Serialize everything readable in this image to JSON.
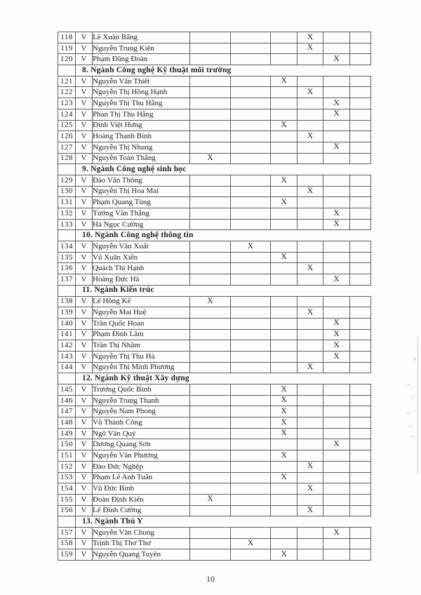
{
  "page": {
    "number": "10"
  },
  "colors": {
    "background": "#fdfdfb",
    "border": "#5d5d5d",
    "text": "#1f1f1f"
  },
  "table": {
    "check_symbol": "V",
    "mark_symbol": "X",
    "mark_columns": 6,
    "rows": [
      {
        "type": "entry",
        "no": "118",
        "check": "V",
        "name": "Lê Xuân Bằng",
        "mark_col": 4
      },
      {
        "type": "entry",
        "no": "119",
        "check": "V",
        "name": "Nguyễn Trung Kiên",
        "mark_col": 4
      },
      {
        "type": "entry",
        "no": "120",
        "check": "V",
        "name": "Phạm Đăng Đoàn",
        "mark_col": 5
      },
      {
        "type": "section",
        "label": "8. Ngành Công nghệ  Kỹ thuật môi trường"
      },
      {
        "type": "entry",
        "no": "121",
        "check": "V",
        "name": "Nguyễn Văn Thiết",
        "mark_col": 3
      },
      {
        "type": "entry",
        "no": "122",
        "check": "V",
        "name": "Nguyễn Thị Hồng Hạnh",
        "mark_col": 4
      },
      {
        "type": "entry",
        "no": "123",
        "check": "V",
        "name": "Nguyễn Thị Thu Hằng",
        "mark_col": 5
      },
      {
        "type": "entry",
        "no": "124",
        "check": "V",
        "name": "Phan Thị Thu Hằng",
        "mark_col": 5
      },
      {
        "type": "entry",
        "no": "125",
        "check": "V",
        "name": "Đinh Việt Hưng",
        "mark_col": 3
      },
      {
        "type": "entry",
        "no": "126",
        "check": "V",
        "name": "Hoàng Thanh Bình",
        "mark_col": 4
      },
      {
        "type": "entry",
        "no": "127",
        "check": "V",
        "name": "Nguyễn Thị Nhung",
        "mark_col": 5
      },
      {
        "type": "entry",
        "no": "128",
        "check": "V",
        "name": "Nguyễn Toàn Thắng",
        "mark_col": 1
      },
      {
        "type": "section",
        "label": "9. Ngành Công nghệ sinh học"
      },
      {
        "type": "entry",
        "no": "129",
        "check": "V",
        "name": "Đào Văn Thông",
        "mark_col": 3
      },
      {
        "type": "entry",
        "no": "130",
        "check": "V",
        "name": "Nguyễn Thị Hoa Mai",
        "mark_col": 4
      },
      {
        "type": "entry",
        "no": "131",
        "check": "V",
        "name": "Phạm Quang Tùng",
        "mark_col": 3
      },
      {
        "type": "entry",
        "no": "132",
        "check": "V",
        "name": "Tưởng Văn Thắng",
        "mark_col": 5
      },
      {
        "type": "entry",
        "no": "133",
        "check": "V",
        "name": "Hà Ngọc Cường",
        "mark_col": 5
      },
      {
        "type": "section",
        "label": "10. Ngành Công nghệ thông tin"
      },
      {
        "type": "entry",
        "no": "134",
        "check": "V",
        "name": "Nguyễn Văn  Xuất",
        "mark_col": 2
      },
      {
        "type": "entry",
        "no": "135",
        "check": "V",
        "name": "Vũ Xuân Xiển",
        "mark_col": 3
      },
      {
        "type": "entry",
        "no": "136",
        "check": "V",
        "name": "Quách Thị Hạnh",
        "mark_col": 4
      },
      {
        "type": "entry",
        "no": "137",
        "check": "V",
        "name": "Hoàng Đức Hà",
        "mark_col": 5
      },
      {
        "type": "section",
        "label": "11. Ngành Kiến trúc"
      },
      {
        "type": "entry",
        "no": "138",
        "check": "V",
        "name": "Lê Hồng Kế",
        "mark_col": 1
      },
      {
        "type": "entry",
        "no": "139",
        "check": "V",
        "name": "Nguyễn Mai Huệ",
        "mark_col": 4
      },
      {
        "type": "entry",
        "no": "140",
        "check": "V",
        "name": "Trần Quốc Hoan",
        "mark_col": 5
      },
      {
        "type": "entry",
        "no": "141",
        "check": "V",
        "name": "Phạm Đình Lâm",
        "mark_col": 5
      },
      {
        "type": "entry",
        "no": "142",
        "check": "V",
        "name": "Trần Thị Nhâm",
        "mark_col": 5
      },
      {
        "type": "entry",
        "no": "143",
        "check": "V",
        "name": "Nguyễn Thị Thu Hà",
        "mark_col": 5
      },
      {
        "type": "entry",
        "no": "144",
        "check": "V",
        "name": "Nguyễn Thị Minh Phương",
        "mark_col": 4
      },
      {
        "type": "section",
        "label": "12. Ngành  Kỹ thuật Xây dựng"
      },
      {
        "type": "entry",
        "no": "145",
        "check": "V",
        "name": "Trương Quốc Bình",
        "mark_col": 3
      },
      {
        "type": "entry",
        "no": "146",
        "check": "V",
        "name": "Nguyễn Trung Thanh",
        "mark_col": 3
      },
      {
        "type": "entry",
        "no": "147",
        "check": "V",
        "name": "Nguyễn Nam Phong",
        "mark_col": 3
      },
      {
        "type": "entry",
        "no": "148",
        "check": "V",
        "name": "Vũ Thành Công",
        "mark_col": 3
      },
      {
        "type": "entry",
        "no": "149",
        "check": "V",
        "name": "Ngô Văn Quý",
        "mark_col": 3
      },
      {
        "type": "entry",
        "no": "150",
        "check": "V",
        "name": "Dương Quang Sơn",
        "mark_col": 5
      },
      {
        "type": "entry",
        "no": "151",
        "check": "V",
        "name": "Nguyễn Văn Phượng",
        "mark_col": 3
      },
      {
        "type": "entry",
        "no": "152",
        "check": "V",
        "name": "Đào Đức Nghệp",
        "mark_col": 4
      },
      {
        "type": "entry",
        "no": "153",
        "check": "V",
        "name": "Phạm Lê Anh Tuấn",
        "mark_col": 3
      },
      {
        "type": "entry",
        "no": "154",
        "check": "V",
        "name": "Vũ Đức Bình",
        "mark_col": 4
      },
      {
        "type": "entry",
        "no": "155",
        "check": "V",
        "name": "Đoàn Định Kiến",
        "mark_col": 1
      },
      {
        "type": "entry",
        "no": "156",
        "check": "V",
        "name": "Lê Đình Cường",
        "mark_col": 4
      },
      {
        "type": "section",
        "label": "13. Ngành Thú Y"
      },
      {
        "type": "entry",
        "no": "157",
        "check": "V",
        "name": "Nguyễn Văn Chung",
        "mark_col": 5
      },
      {
        "type": "entry",
        "no": "158",
        "check": "V",
        "name": "Trịnh Thị Thơ Thơ",
        "mark_col": 2
      },
      {
        "type": "entry",
        "no": "159",
        "check": "V",
        "name": "Nguyễn Quang Tuyên",
        "mark_col": 3
      }
    ]
  }
}
